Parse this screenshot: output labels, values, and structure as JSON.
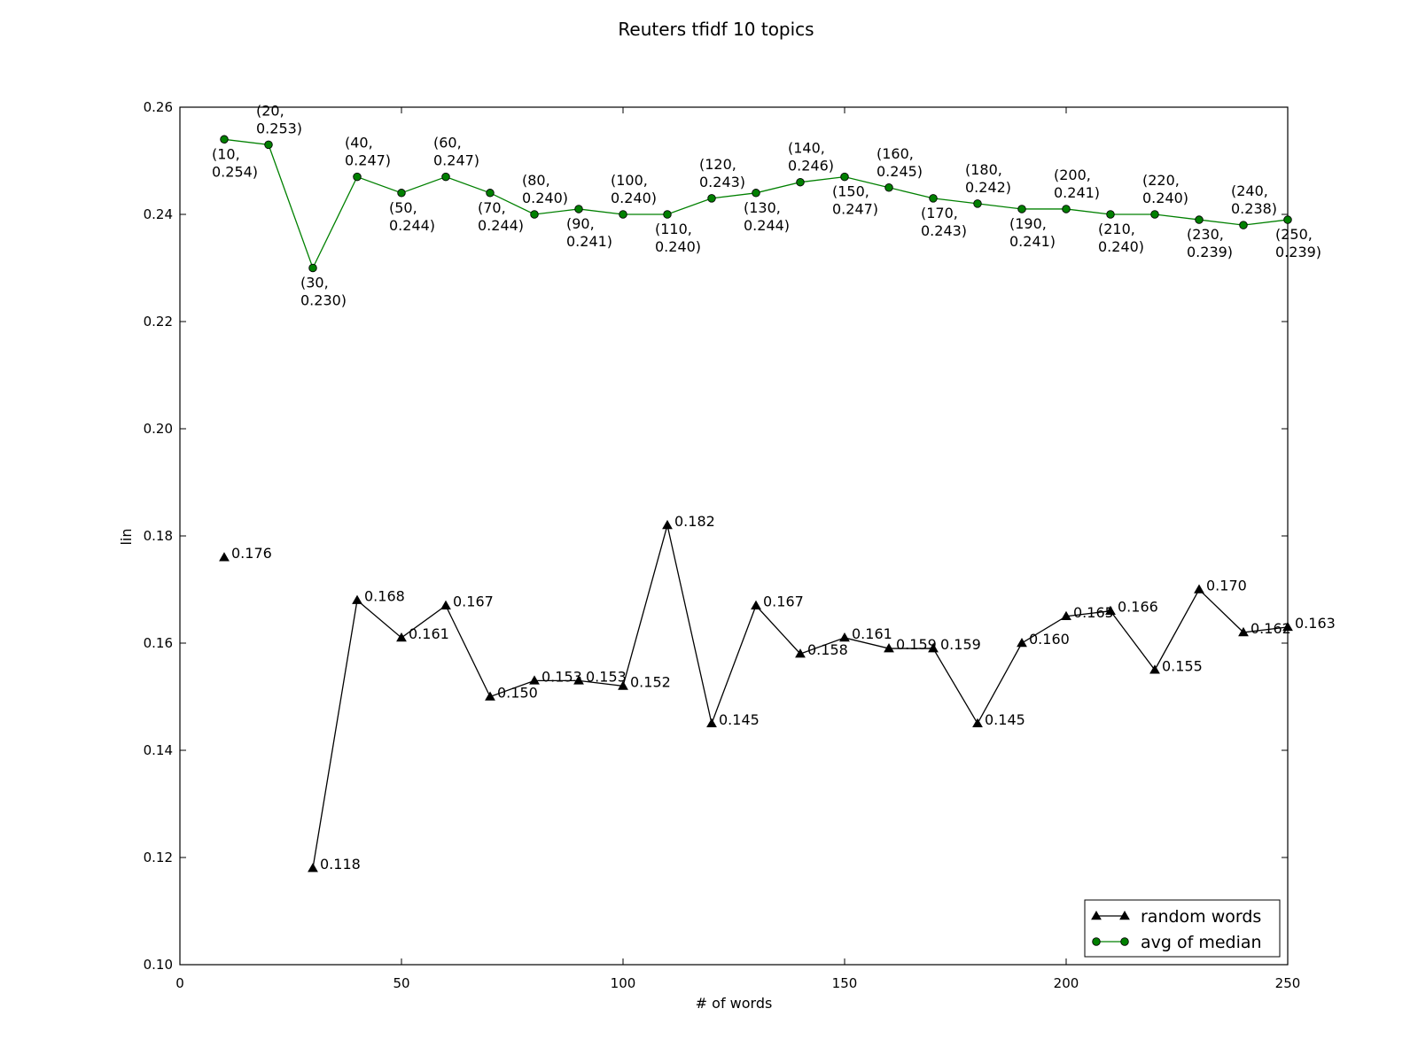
{
  "chart_data": {
    "type": "line",
    "title": "Reuters tfidf  10 topics",
    "xlabel": "# of words",
    "ylabel": "lin",
    "xlim": [
      0,
      250
    ],
    "ylim": [
      0.1,
      0.26
    ],
    "x_ticks": [
      "0",
      "50",
      "100",
      "150",
      "200",
      "250"
    ],
    "y_ticks": [
      "0.10",
      "0.12",
      "0.14",
      "0.16",
      "0.18",
      "0.20",
      "0.22",
      "0.24",
      "0.26"
    ],
    "grid": false,
    "legend_position": "lower-right",
    "series": [
      {
        "name": "random words",
        "color": "#000000",
        "marker": "triangle",
        "points": [
          {
            "x": 10,
            "y": 0.176,
            "label": "0.176"
          },
          {
            "x": 30,
            "y": 0.118,
            "label": "0.118"
          },
          {
            "x": 40,
            "y": 0.168,
            "label": "0.168"
          },
          {
            "x": 50,
            "y": 0.161,
            "label": "0.161"
          },
          {
            "x": 60,
            "y": 0.167,
            "label": "0.167"
          },
          {
            "x": 70,
            "y": 0.15,
            "label": "0.150"
          },
          {
            "x": 80,
            "y": 0.153,
            "label": "0.153"
          },
          {
            "x": 90,
            "y": 0.153,
            "label": "0.153"
          },
          {
            "x": 100,
            "y": 0.152,
            "label": "0.152"
          },
          {
            "x": 110,
            "y": 0.182,
            "label": "0.182"
          },
          {
            "x": 120,
            "y": 0.145,
            "label": "0.145"
          },
          {
            "x": 130,
            "y": 0.167,
            "label": "0.167"
          },
          {
            "x": 140,
            "y": 0.158,
            "label": "0.158"
          },
          {
            "x": 150,
            "y": 0.161,
            "label": "0.161"
          },
          {
            "x": 160,
            "y": 0.159,
            "label": "0.159"
          },
          {
            "x": 170,
            "y": 0.159,
            "label": "0.159"
          },
          {
            "x": 180,
            "y": 0.145,
            "label": "0.145"
          },
          {
            "x": 190,
            "y": 0.16,
            "label": "0.160"
          },
          {
            "x": 200,
            "y": 0.165,
            "label": "0.165"
          },
          {
            "x": 210,
            "y": 0.166,
            "label": "0.166"
          },
          {
            "x": 220,
            "y": 0.155,
            "label": "0.155"
          },
          {
            "x": 230,
            "y": 0.17,
            "label": "0.170"
          },
          {
            "x": 240,
            "y": 0.162,
            "label": "0.162"
          },
          {
            "x": 250,
            "y": 0.163,
            "label": "0.163"
          }
        ]
      },
      {
        "name": "avg of median",
        "color": "#008000",
        "marker": "circle",
        "points": [
          {
            "x": 10,
            "y": 0.254,
            "label": [
              "(10,",
              "0.254)"
            ]
          },
          {
            "x": 20,
            "y": 0.253,
            "label": [
              "(20,",
              "0.253)"
            ]
          },
          {
            "x": 30,
            "y": 0.23,
            "label": [
              "(30,",
              "0.230)"
            ]
          },
          {
            "x": 40,
            "y": 0.247,
            "label": [
              "(40,",
              "0.247)"
            ]
          },
          {
            "x": 50,
            "y": 0.244,
            "label": [
              "(50,",
              "0.244)"
            ]
          },
          {
            "x": 60,
            "y": 0.247,
            "label": [
              "(60,",
              "0.247)"
            ]
          },
          {
            "x": 70,
            "y": 0.244,
            "label": [
              "(70,",
              "0.244)"
            ]
          },
          {
            "x": 80,
            "y": 0.24,
            "label": [
              "(80,",
              "0.240)"
            ]
          },
          {
            "x": 90,
            "y": 0.241,
            "label": [
              "(90,",
              "0.241)"
            ]
          },
          {
            "x": 100,
            "y": 0.24,
            "label": [
              "(100,",
              "0.240)"
            ]
          },
          {
            "x": 110,
            "y": 0.24,
            "label": [
              "(110,",
              "0.240)"
            ]
          },
          {
            "x": 120,
            "y": 0.243,
            "label": [
              "(120,",
              "0.243)"
            ]
          },
          {
            "x": 130,
            "y": 0.244,
            "label": [
              "(130,",
              "0.244)"
            ]
          },
          {
            "x": 140,
            "y": 0.246,
            "label": [
              "(140,",
              "0.246)"
            ]
          },
          {
            "x": 150,
            "y": 0.247,
            "label": [
              "(150,",
              "0.247)"
            ]
          },
          {
            "x": 160,
            "y": 0.245,
            "label": [
              "(160,",
              "0.245)"
            ]
          },
          {
            "x": 170,
            "y": 0.243,
            "label": [
              "(170,",
              "0.243)"
            ]
          },
          {
            "x": 180,
            "y": 0.242,
            "label": [
              "(180,",
              "0.242)"
            ]
          },
          {
            "x": 190,
            "y": 0.241,
            "label": [
              "(190,",
              "0.241)"
            ]
          },
          {
            "x": 200,
            "y": 0.241,
            "label": [
              "(200,",
              "0.241)"
            ]
          },
          {
            "x": 210,
            "y": 0.24,
            "label": [
              "(210,",
              "0.240)"
            ]
          },
          {
            "x": 220,
            "y": 0.24,
            "label": [
              "(220,",
              "0.240)"
            ]
          },
          {
            "x": 230,
            "y": 0.239,
            "label": [
              "(230,",
              "0.239)"
            ]
          },
          {
            "x": 240,
            "y": 0.238,
            "label": [
              "(240,",
              "0.238)"
            ]
          },
          {
            "x": 250,
            "y": 0.239,
            "label": [
              "(250,",
              "0.239)"
            ]
          }
        ]
      }
    ]
  }
}
